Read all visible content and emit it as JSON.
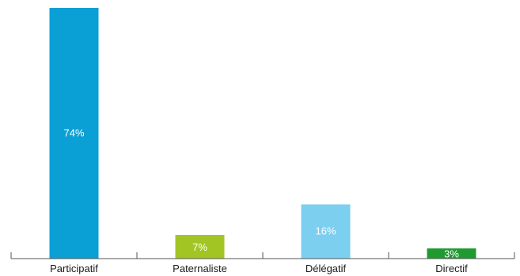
{
  "chart_data": {
    "type": "bar",
    "title": "",
    "xlabel": "",
    "ylabel": "",
    "categories": [
      "Participatif",
      "Paternaliste",
      "Délégatif",
      "Directif"
    ],
    "values": [
      74,
      7,
      16,
      3
    ],
    "data_labels": [
      "74%",
      "7%",
      "16%",
      "3%"
    ],
    "colors": [
      "#0aa0d6",
      "#a3c524",
      "#7dcff0",
      "#1f9a30"
    ],
    "ylim": [
      0,
      74
    ],
    "grid": false,
    "legend": "none"
  }
}
